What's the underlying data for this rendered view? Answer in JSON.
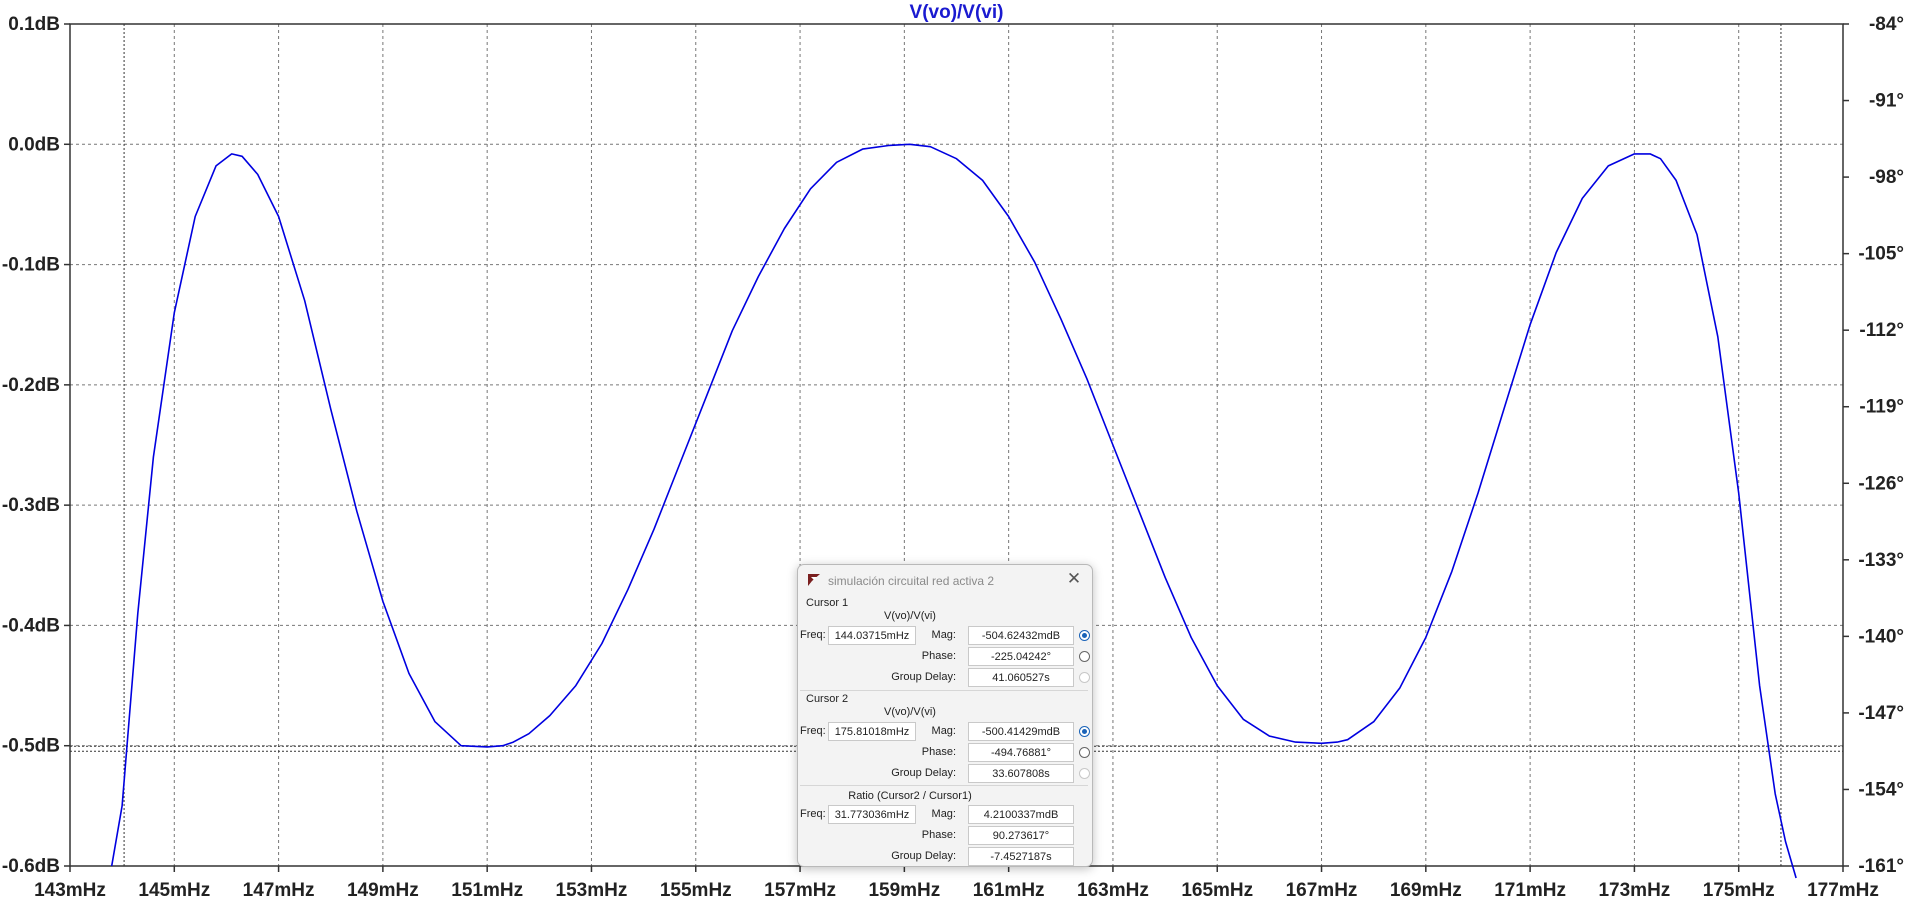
{
  "chart_data": {
    "type": "line",
    "title": "V(vo)/V(vi)",
    "x_unit": "mHz",
    "xlim": [
      143,
      177
    ],
    "x_ticks": [
      "143mHz",
      "145mHz",
      "147mHz",
      "149mHz",
      "151mHz",
      "153mHz",
      "155mHz",
      "157mHz",
      "159mHz",
      "161mHz",
      "163mHz",
      "165mHz",
      "167mHz",
      "169mHz",
      "171mHz",
      "173mHz",
      "175mHz",
      "177mHz"
    ],
    "ylim": [
      -0.6,
      0.1
    ],
    "y_ticks": [
      "0.1dB",
      "0.0dB",
      "-0.1dB",
      "-0.2dB",
      "-0.3dB",
      "-0.4dB",
      "-0.5dB",
      "-0.6dB"
    ],
    "right_ticks": [
      "-84°",
      "-91°",
      "-98°",
      "-105°",
      "-112°",
      "-119°",
      "-126°",
      "-133°",
      "-140°",
      "-147°",
      "-154°",
      "-161°"
    ],
    "grid": true,
    "series": [
      {
        "color": "#0000e0",
        "x": [
          143.8,
          144.0,
          144.3,
          144.6,
          145.0,
          145.4,
          145.8,
          146.1,
          146.3,
          146.6,
          147.0,
          147.5,
          148.0,
          148.5,
          149.0,
          149.5,
          150.0,
          150.5,
          151.0,
          151.3,
          151.5,
          151.8,
          152.2,
          152.7,
          153.2,
          153.7,
          154.2,
          154.7,
          155.2,
          155.7,
          156.2,
          156.7,
          157.2,
          157.7,
          158.2,
          158.7,
          159.1,
          159.5,
          160.0,
          160.5,
          161.0,
          161.5,
          162.0,
          162.5,
          163.0,
          163.5,
          164.0,
          164.5,
          165.0,
          165.5,
          166.0,
          166.5,
          167.0,
          167.3,
          167.5,
          168.0,
          168.5,
          169.0,
          169.5,
          170.0,
          170.5,
          171.0,
          171.5,
          172.0,
          172.5,
          173.0,
          173.3,
          173.5,
          173.8,
          174.2,
          174.6,
          175.0,
          175.4,
          175.7,
          175.9,
          176.1
        ],
        "values": [
          -0.6,
          -0.55,
          -0.39,
          -0.26,
          -0.14,
          -0.06,
          -0.018,
          -0.008,
          -0.01,
          -0.025,
          -0.06,
          -0.13,
          -0.22,
          -0.305,
          -0.38,
          -0.44,
          -0.48,
          -0.5,
          -0.501,
          -0.5,
          -0.497,
          -0.49,
          -0.475,
          -0.45,
          -0.415,
          -0.37,
          -0.32,
          -0.265,
          -0.21,
          -0.155,
          -0.11,
          -0.07,
          -0.037,
          -0.015,
          -0.004,
          -0.001,
          0.0,
          -0.002,
          -0.012,
          -0.03,
          -0.06,
          -0.098,
          -0.145,
          -0.195,
          -0.25,
          -0.305,
          -0.36,
          -0.41,
          -0.45,
          -0.478,
          -0.492,
          -0.497,
          -0.498,
          -0.497,
          -0.495,
          -0.48,
          -0.452,
          -0.41,
          -0.355,
          -0.29,
          -0.22,
          -0.15,
          -0.09,
          -0.045,
          -0.018,
          -0.008,
          -0.008,
          -0.012,
          -0.03,
          -0.075,
          -0.16,
          -0.29,
          -0.45,
          -0.54,
          -0.58,
          -0.61
        ]
      }
    ],
    "cursors": [
      {
        "x": 144.03715,
        "y": -0.5046
      },
      {
        "x": 175.81018,
        "y": -0.5004
      }
    ]
  },
  "dialog": {
    "title": "simulación circuital red activa 2",
    "close_symbol": "✕",
    "cursor1": {
      "label": "Cursor 1",
      "signal": "V(vo)/V(vi)",
      "freq_label": "Freq:",
      "freq": "144.03715mHz",
      "mag_label": "Mag:",
      "mag": "-504.62432mdB",
      "phase_label": "Phase:",
      "phase": "-225.04242°",
      "gd_label": "Group Delay:",
      "gd": "41.060527s"
    },
    "cursor2": {
      "label": "Cursor 2",
      "signal": "V(vo)/V(vi)",
      "freq_label": "Freq:",
      "freq": "175.81018mHz",
      "mag_label": "Mag:",
      "mag": "-500.41429mdB",
      "phase_label": "Phase:",
      "phase": "-494.76881°",
      "gd_label": "Group Delay:",
      "gd": "33.607808s"
    },
    "ratio": {
      "label": "Ratio (Cursor2 / Cursor1)",
      "freq_label": "Freq:",
      "freq": "31.773036mHz",
      "mag_label": "Mag:",
      "mag": "4.2100337mdB",
      "phase_label": "Phase:",
      "phase": "90.273617°",
      "gd_label": "Group Delay:",
      "gd": "-7.4527187s"
    }
  }
}
